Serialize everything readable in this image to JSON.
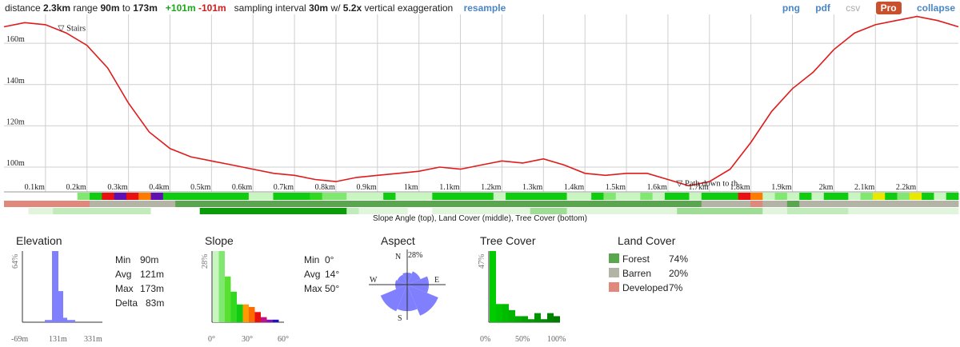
{
  "toolbar": {
    "distance_label": "distance",
    "distance": "2.3km",
    "range_label": "range",
    "range_min": "90m",
    "range_to": "to",
    "range_max": "173m",
    "gain": "+101m",
    "loss": "-101m",
    "sampling_label": "sampling interval",
    "sampling": "30m",
    "with_label": "w/",
    "exaggeration": "5.2x",
    "exaggeration_label": "vertical exaggeration",
    "resample": "resample",
    "png": "png",
    "pdf": "pdf",
    "csv": "csv",
    "pro": "Pro",
    "collapse": "collapse"
  },
  "colors": {
    "profile_line": "#e01b1b",
    "link": "#4a86c5",
    "forest": "#5aa64e",
    "barren": "#b3b3a6",
    "developed": "#e0887c",
    "histogram_blue": "#8080ff",
    "tree_green": "#00cc00"
  },
  "chart_data": [
    {
      "type": "line",
      "name": "elevation-profile",
      "x": [
        0,
        0.05,
        0.1,
        0.15,
        0.2,
        0.25,
        0.3,
        0.35,
        0.4,
        0.45,
        0.5,
        0.55,
        0.6,
        0.65,
        0.7,
        0.75,
        0.8,
        0.85,
        0.9,
        0.95,
        1.0,
        1.05,
        1.1,
        1.15,
        1.2,
        1.25,
        1.3,
        1.35,
        1.4,
        1.45,
        1.5,
        1.55,
        1.6,
        1.65,
        1.7,
        1.75,
        1.8,
        1.85,
        1.9,
        1.95,
        2.0,
        2.05,
        2.1,
        2.15,
        2.2,
        2.25,
        2.3
      ],
      "y": [
        168,
        170,
        169,
        165,
        159,
        148,
        131,
        117,
        109,
        105,
        103,
        101,
        99,
        97,
        96,
        94,
        93,
        95,
        96,
        97,
        98,
        100,
        99,
        101,
        103,
        102,
        104,
        101,
        97,
        96,
        97,
        97,
        94,
        91,
        93,
        99,
        112,
        127,
        138,
        146,
        157,
        165,
        169,
        171,
        173,
        171,
        168
      ],
      "xlim": [
        0,
        2.3
      ],
      "ylim": [
        88,
        174
      ],
      "x_tick_labels": [
        "0.1km",
        "0.2km",
        "0.3km",
        "0.4km",
        "0.5km",
        "0.6km",
        "0.7km",
        "0.8km",
        "0.9km",
        "1km",
        "1.1km",
        "1.2km",
        "1.3km",
        "1.4km",
        "1.5km",
        "1.6km",
        "1.7km",
        "1.8km",
        "1.9km",
        "2km",
        "2.1km",
        "2.2km"
      ],
      "y_tick_labels": [
        "100m",
        "120m",
        "140m",
        "160m"
      ],
      "y_ticks": [
        100,
        120,
        140,
        160
      ],
      "annotations": [
        {
          "x": 0.13,
          "y": 166,
          "text": "▽ Stairs"
        },
        {
          "x": 1.62,
          "y": 91,
          "text": "▽ Path down to th"
        }
      ],
      "grid": true
    },
    {
      "type": "heatmap",
      "name": "slope-landcover-tree-strips",
      "caption": "Slope Angle (top), Land Cover (middle), Tree Cover (bottom)",
      "slope_colors": [
        "#fff",
        "#fff",
        "#fff",
        "#fff",
        "#fff",
        "#fff",
        "#fff",
        "#fff",
        "#fff",
        "#fff",
        "#fff",
        "#fff",
        "#fff",
        "#fff",
        "#fff",
        "#fff",
        "#fff",
        "#fff",
        "#fff",
        "#fff",
        "#fff",
        "#fff",
        "#fff",
        "#fff",
        "#fff",
        "#fff",
        "#fff",
        "#fff",
        "#fff",
        "#fff",
        "#fff",
        "#fff",
        "#fff",
        "#fff",
        "#fff",
        "#fff",
        "#fff",
        "#fff",
        "#fff",
        "#fff",
        "#fff",
        "#fff",
        "#fff",
        "#fff",
        "#fff",
        "#fff",
        "#fff",
        "#fff",
        "#fff",
        "#fff",
        "#fff",
        "#fff",
        "#fff",
        "#fff",
        "#fff",
        "#fff",
        "#fff",
        "#fff",
        "#fff",
        "#fff",
        "#fff",
        "#fff",
        "#fff",
        "#fff",
        "#fff",
        "#fff",
        "#fff",
        "#fff",
        "#fff",
        "#fff",
        "#fff",
        "#fff",
        "#fff",
        "#fff",
        "#fff",
        "#fff",
        "#fff",
        "#fff"
      ],
      "landcover_colors": [
        "#fff"
      ],
      "tree_colors": [
        "#fff"
      ]
    },
    {
      "type": "bar",
      "name": "elevation-histogram",
      "title": "Elevation",
      "x_tick_labels": [
        "-69m",
        "131m",
        "331m"
      ],
      "y_label": "64%",
      "values": [
        2,
        64,
        28,
        4,
        2
      ],
      "stats": [
        {
          "label": "Min",
          "value": "90m"
        },
        {
          "label": "Avg",
          "value": "121m"
        },
        {
          "label": "Max",
          "value": "173m"
        },
        {
          "label": "Delta",
          "value": "83m"
        }
      ]
    },
    {
      "type": "bar",
      "name": "slope-histogram",
      "title": "Slope",
      "x_tick_labels": [
        "0°",
        "30°",
        "60°"
      ],
      "y_label": "28%",
      "values": [
        28,
        28,
        18,
        12,
        7,
        7,
        6,
        4,
        2,
        1,
        1
      ],
      "bar_colors": [
        "#c8f5c0",
        "#80e870",
        "#58e030",
        "#30d820",
        "#10cc10",
        "#ff9a00",
        "#ff6a00",
        "#e81010",
        "#c0108a",
        "#8010c0",
        "#2010c0"
      ],
      "stats": [
        {
          "label": "Min",
          "value": "0°"
        },
        {
          "label": "Avg",
          "value": "14°"
        },
        {
          "label": "Max",
          "value": "50°"
        }
      ]
    },
    {
      "type": "pie",
      "name": "aspect-rose",
      "title": "Aspect",
      "max_label": "28%",
      "directions": [
        "N",
        "NE",
        "E",
        "SE",
        "S",
        "SW",
        "W",
        "NW"
      ],
      "values": [
        10,
        12,
        18,
        28,
        22,
        24,
        10,
        9
      ],
      "compass_labels": {
        "n": "N",
        "e": "E",
        "s": "S",
        "w": "W"
      }
    },
    {
      "type": "bar",
      "name": "tree-cover-histogram",
      "title": "Tree Cover",
      "x_tick_labels": [
        "0%",
        "50%",
        "100%"
      ],
      "y_label": "47%",
      "values": [
        47,
        12,
        12,
        8,
        4,
        4,
        2,
        6,
        2,
        6,
        4
      ],
      "bar_colors": [
        "#00cc00",
        "#00c400",
        "#00bc00",
        "#00b400",
        "#00ac00",
        "#00a400",
        "#009c00",
        "#009400",
        "#008c00",
        "#008400",
        "#007c00"
      ]
    },
    {
      "type": "table",
      "name": "land-cover-legend",
      "title": "Land Cover",
      "rows": [
        {
          "label": "Forest",
          "value": "74%",
          "color": "#5aa64e"
        },
        {
          "label": "Barren",
          "value": "20%",
          "color": "#b3b3a6"
        },
        {
          "label": "Developed",
          "value": "7%",
          "color": "#e0887c"
        }
      ]
    }
  ]
}
